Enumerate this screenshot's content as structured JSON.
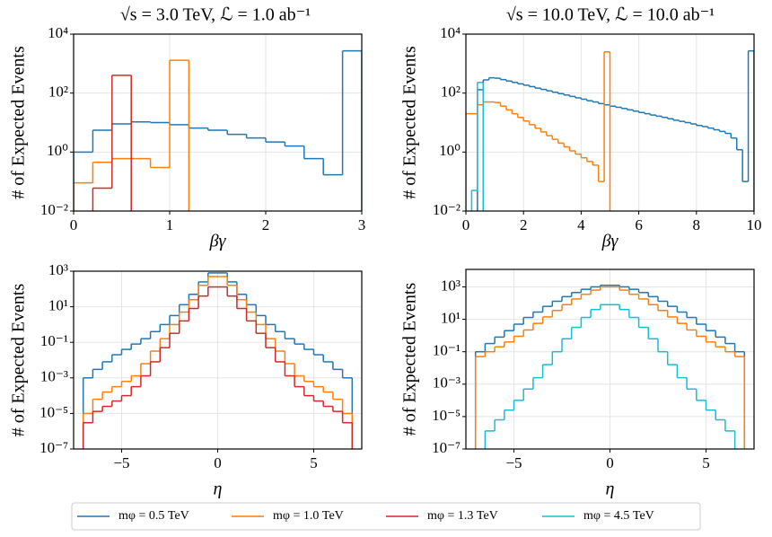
{
  "chart_data": [
    {
      "type": "histogram",
      "title": "√s = 3.0 TeV, ℒ = 1.0 ab⁻¹",
      "xlabel": "βγ",
      "ylabel": "# of Expected Events",
      "log_y": true,
      "grid": true,
      "bins": [
        0,
        0.2,
        0.4,
        0.6,
        0.8,
        1.0,
        1.2,
        1.4,
        1.6,
        1.8,
        2.0,
        2.2,
        2.4,
        2.6,
        2.8,
        3.0
      ],
      "xlim": [
        0,
        3
      ],
      "xticks": [
        0,
        1,
        2,
        3
      ],
      "ylim": [
        0.01,
        10000
      ],
      "yticks": [
        {
          "value": 0.01,
          "label": "10⁻²"
        },
        {
          "value": 1,
          "label": "10⁰"
        },
        {
          "value": 100,
          "label": "10²"
        },
        {
          "value": 10000,
          "label": "10⁴"
        }
      ],
      "series": [
        {
          "color": "#1f77b4",
          "values": [
            1,
            5.5,
            9,
            10.5,
            10,
            8.5,
            6.5,
            5.5,
            4,
            3,
            2.2,
            1.6,
            0.6,
            0.17,
            2700
          ]
        },
        {
          "color": "#ff7f0e",
          "values": [
            0.09,
            0.45,
            0.6,
            0.6,
            0.3,
            1300,
            null,
            null,
            null,
            null,
            null,
            null,
            null,
            null,
            null
          ]
        },
        {
          "color": "#d62728",
          "values": [
            null,
            0.06,
            400,
            null,
            null,
            null,
            null,
            null,
            null,
            null,
            null,
            null,
            null,
            null,
            null
          ]
        }
      ]
    },
    {
      "type": "histogram",
      "title": "√s = 10.0 TeV, ℒ = 10.0 ab⁻¹",
      "xlabel": "βγ",
      "ylabel": "# of Expected Events",
      "log_y": true,
      "grid": true,
      "bins": [
        0,
        0.2,
        0.4,
        0.6,
        0.8,
        1.0,
        1.2,
        1.4,
        1.6,
        1.8,
        2.0,
        2.2,
        2.4,
        2.6,
        2.8,
        3.0,
        3.2,
        3.4,
        3.6,
        3.8,
        4.0,
        4.2,
        4.4,
        4.6,
        4.8,
        5.0,
        5.2,
        5.4,
        5.6,
        5.8,
        6.0,
        6.2,
        6.4,
        6.6,
        6.8,
        7.0,
        7.2,
        7.4,
        7.6,
        7.8,
        8.0,
        8.2,
        8.4,
        8.6,
        8.8,
        9.0,
        9.2,
        9.4,
        9.6,
        9.8,
        10.0
      ],
      "xlim": [
        0,
        10
      ],
      "xticks": [
        0,
        2,
        4,
        6,
        8,
        10
      ],
      "ylim": [
        0.01,
        10000
      ],
      "yticks": [
        {
          "value": 0.01,
          "label": "10⁻²"
        },
        {
          "value": 1,
          "label": "10⁰"
        },
        {
          "value": 100,
          "label": "10²"
        },
        {
          "value": 10000,
          "label": "10⁴"
        }
      ],
      "series": [
        {
          "color": "#1f77b4",
          "values": [
            null,
            null,
            130,
            280,
            330,
            320,
            287,
            257,
            230,
            206,
            185,
            166,
            148,
            133,
            119,
            107,
            96,
            86,
            77,
            69,
            62,
            55,
            50,
            44,
            40,
            36,
            33,
            30,
            27,
            24.5,
            22,
            20,
            18,
            16.5,
            15,
            13.5,
            12,
            11,
            10,
            9,
            8,
            7.3,
            6.5,
            5.7,
            5,
            4.3,
            3,
            1.2,
            0.1,
            2700
          ]
        },
        {
          "color": "#ff7f0e",
          "values": [
            20,
            20,
            40,
            50,
            50,
            48,
            36,
            27,
            20,
            15,
            11.3,
            8.5,
            6.4,
            4.8,
            3.6,
            2.7,
            2.0,
            1.5,
            1.1,
            0.85,
            0.64,
            0.48,
            0.36,
            0.1,
            2500,
            null,
            null,
            null,
            null,
            null,
            null,
            null,
            null,
            null,
            null,
            null,
            null,
            null,
            null,
            null,
            null,
            null,
            null,
            null,
            null,
            null,
            null,
            null,
            null,
            null
          ]
        },
        {
          "color": "#17becf",
          "values": [
            null,
            0.05,
            230,
            null,
            null,
            null,
            null,
            null,
            null,
            null,
            null,
            null,
            null,
            null,
            null,
            null,
            null,
            null,
            null,
            null,
            null,
            null,
            null,
            null,
            null,
            null,
            null,
            null,
            null,
            null,
            null,
            null,
            null,
            null,
            null,
            null,
            null,
            null,
            null,
            null,
            null,
            null,
            null,
            null,
            null,
            null,
            null,
            null,
            null,
            null
          ]
        }
      ]
    },
    {
      "type": "histogram",
      "xlabel": "η",
      "ylabel": "# of Expected Events",
      "log_y": true,
      "grid": true,
      "bins": [
        -7,
        -6.5,
        -6,
        -5.5,
        -5,
        -4.5,
        -4,
        -3.5,
        -3,
        -2.5,
        -2,
        -1.5,
        -1,
        -0.5,
        0,
        0.5,
        1,
        1.5,
        2,
        2.5,
        3,
        3.5,
        4,
        4.5,
        5,
        5.5,
        6,
        6.5,
        7
      ],
      "xlim": [
        -7.5,
        7.5
      ],
      "xticks": [
        {
          "value": -5,
          "label": "−5"
        },
        0,
        5
      ],
      "ylim": [
        1e-07,
        1000
      ],
      "yticks": [
        {
          "value": 1e-07,
          "label": "10⁻⁷"
        },
        {
          "value": 1e-05,
          "label": "10⁻⁵"
        },
        {
          "value": 0.001,
          "label": "10⁻³"
        },
        {
          "value": 0.1,
          "label": "10⁻¹"
        },
        {
          "value": 10,
          "label": "10¹"
        },
        {
          "value": 1000,
          "label": "10³"
        }
      ],
      "series": [
        {
          "color": "#1f77b4",
          "values": [
            0.001,
            0.003,
            0.008,
            0.02,
            0.04,
            0.08,
            0.16,
            0.4,
            1,
            3.2,
            13,
            50,
            250,
            800,
            800,
            250,
            50,
            13,
            3.2,
            1,
            0.4,
            0.16,
            0.08,
            0.04,
            0.02,
            0.008,
            0.003,
            0.001
          ]
        },
        {
          "color": "#ff7f0e",
          "values": [
            1e-05,
            6.3e-05,
            0.00016,
            0.00032,
            0.00063,
            0.0013,
            0.0063,
            0.032,
            0.16,
            1,
            5,
            25,
            160,
            500,
            500,
            160,
            25,
            5,
            1,
            0.16,
            0.032,
            0.0063,
            0.0013,
            0.00063,
            0.00032,
            0.00016,
            6.3e-05,
            1e-05
          ]
        },
        {
          "color": "#d62728",
          "values": [
            3e-06,
            1.3e-05,
            2.5e-05,
            5e-05,
            0.0001,
            0.00032,
            0.0013,
            0.008,
            0.05,
            0.32,
            1.6,
            8,
            40,
            130,
            130,
            40,
            8,
            1.6,
            0.32,
            0.05,
            0.008,
            0.0013,
            0.00032,
            0.0001,
            5e-05,
            2.5e-05,
            1.3e-05,
            3e-06
          ]
        }
      ]
    },
    {
      "type": "histogram",
      "xlabel": "η",
      "ylabel": "# of Expected Events",
      "log_y": true,
      "grid": true,
      "bins": [
        -7,
        -6.5,
        -6,
        -5.5,
        -5,
        -4.5,
        -4,
        -3.5,
        -3,
        -2.5,
        -2,
        -1.5,
        -1,
        -0.5,
        0,
        0.5,
        1,
        1.5,
        2,
        2.5,
        3,
        3.5,
        4,
        4.5,
        5,
        5.5,
        6,
        6.5,
        7
      ],
      "xlim": [
        -7.5,
        7.5
      ],
      "xticks": [
        {
          "value": -5,
          "label": "−5"
        },
        0,
        5
      ],
      "ylim": [
        1e-07,
        12000
      ],
      "yticks": [
        {
          "value": 1e-07,
          "label": "10⁻⁷"
        },
        {
          "value": 1e-05,
          "label": "10⁻⁵"
        },
        {
          "value": 0.001,
          "label": "10⁻³"
        },
        {
          "value": 0.1,
          "label": "10⁻¹"
        },
        {
          "value": 10,
          "label": "10¹"
        },
        {
          "value": 1000,
          "label": "10³"
        }
      ],
      "series": [
        {
          "color": "#1f77b4",
          "values": [
            0.1,
            0.32,
            0.8,
            2,
            5,
            13,
            28,
            63,
            130,
            250,
            450,
            710,
            1000,
            1260,
            1260,
            1000,
            710,
            450,
            250,
            130,
            63,
            28,
            13,
            5,
            2,
            0.8,
            0.32,
            0.1
          ]
        },
        {
          "color": "#ff7f0e",
          "values": [
            0.05,
            0.1,
            0.2,
            0.4,
            0.9,
            2.2,
            5.6,
            14,
            35,
            80,
            180,
            350,
            630,
            1000,
            1000,
            630,
            350,
            180,
            80,
            35,
            14,
            5.6,
            2.2,
            0.9,
            0.4,
            0.2,
            0.1,
            0.05
          ]
        },
        {
          "color": "#17becf",
          "values": [
            null,
            1.3e-06,
            6.3e-06,
            2.5e-05,
            0.0001,
            0.0005,
            0.0025,
            0.016,
            0.1,
            0.63,
            3.2,
            13,
            40,
            80,
            80,
            40,
            13,
            3.2,
            0.63,
            0.1,
            0.016,
            0.0025,
            0.0005,
            0.0001,
            2.5e-05,
            6.3e-06,
            1.3e-06,
            null
          ]
        }
      ]
    }
  ],
  "legend": {
    "entries": [
      {
        "name": "mφ = 0.5 TeV",
        "color": "#1f77b4"
      },
      {
        "name": "mφ = 1.0 TeV",
        "color": "#ff7f0e"
      },
      {
        "name": "mφ = 1.3 TeV",
        "color": "#d62728"
      },
      {
        "name": "mφ = 4.5 TeV",
        "color": "#17becf"
      }
    ]
  }
}
